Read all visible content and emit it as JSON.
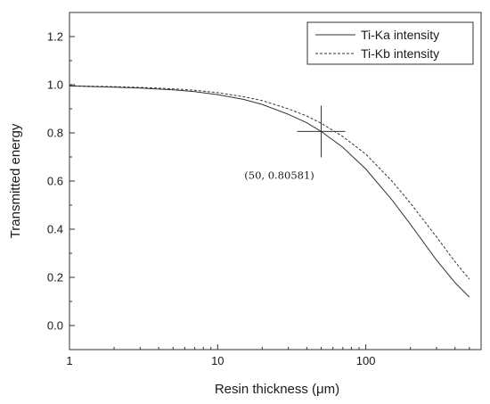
{
  "chart_data": {
    "type": "line",
    "xlabel": "Resin thickness (μm)",
    "ylabel": "Transmitted energy",
    "x_scale": "log",
    "xlim": [
      1,
      600
    ],
    "ylim": [
      -0.1,
      1.3
    ],
    "x_ticks": [
      {
        "value": 1,
        "label": "1"
      },
      {
        "value": 10,
        "label": "10"
      },
      {
        "value": 100,
        "label": "100"
      }
    ],
    "y_ticks": [
      {
        "value": 0.0,
        "label": "0.0"
      },
      {
        "value": 0.2,
        "label": "0.2"
      },
      {
        "value": 0.4,
        "label": "0.4"
      },
      {
        "value": 0.6,
        "label": "0.6"
      },
      {
        "value": 0.8,
        "label": "0.8"
      },
      {
        "value": 1.0,
        "label": "1.0"
      },
      {
        "value": 1.2,
        "label": "1.2"
      }
    ],
    "grid": false,
    "legend_position": "top-right",
    "series": [
      {
        "name": "Ti-Ka intensity",
        "line_style": "solid",
        "color": "#333333",
        "x": [
          1,
          2,
          3,
          5,
          7,
          10,
          15,
          20,
          30,
          40,
          50,
          70,
          100,
          150,
          200,
          300,
          400,
          500
        ],
        "y": [
          0.995,
          0.99,
          0.986,
          0.979,
          0.971,
          0.959,
          0.939,
          0.918,
          0.877,
          0.842,
          0.806,
          0.74,
          0.65,
          0.522,
          0.42,
          0.272,
          0.178,
          0.118
        ]
      },
      {
        "name": "Ti-Kb intensity",
        "line_style": "dashed",
        "color": "#333333",
        "x": [
          1,
          2,
          3,
          5,
          7,
          10,
          15,
          20,
          30,
          40,
          50,
          70,
          100,
          150,
          200,
          300,
          400,
          500
        ],
        "y": [
          0.996,
          0.992,
          0.989,
          0.983,
          0.977,
          0.967,
          0.95,
          0.934,
          0.9,
          0.87,
          0.84,
          0.785,
          0.712,
          0.6,
          0.508,
          0.368,
          0.265,
          0.193
        ]
      }
    ],
    "annotation": {
      "x": 50,
      "y": 0.80581,
      "label": "(50, 0.80581)"
    }
  }
}
